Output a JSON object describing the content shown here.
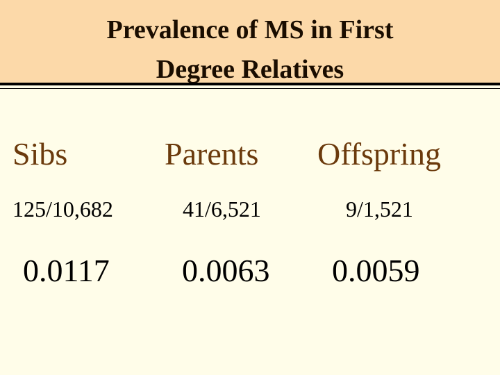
{
  "header": {
    "title_lines": [
      "Prevalence of MS in First",
      "Degree Relatives"
    ]
  },
  "table": {
    "columns": [
      "Sibs",
      "Parents",
      "Offspring"
    ],
    "rows": [
      [
        "125/10,682",
        "41/6,521",
        "9/1,521"
      ],
      [
        "0.0117",
        "0.0063",
        "0.0059"
      ]
    ]
  }
}
